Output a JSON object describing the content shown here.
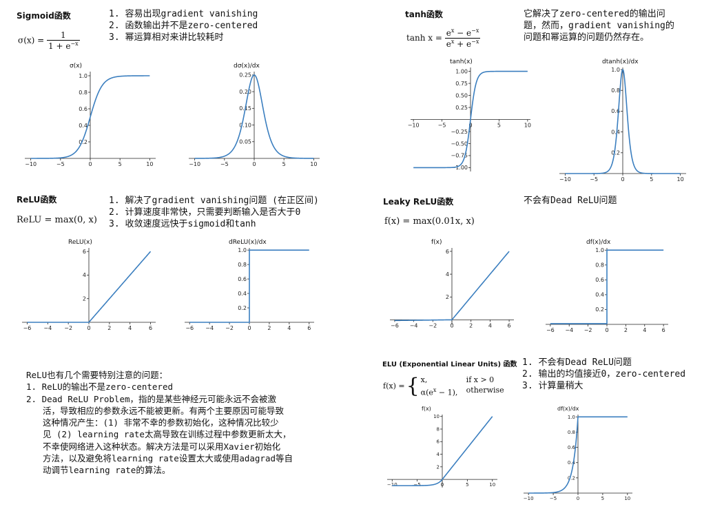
{
  "sections": {
    "sigmoid": {
      "title": "Sigmoid函数",
      "notes": [
        "1.  容易出现gradient vanishing",
        "2.  函数输出并不是zero-centered",
        "3.  幂运算相对来讲比较耗时"
      ],
      "formula": {
        "lhs": "σ(x) =",
        "num": "1",
        "den": "1 + e"
      }
    },
    "tanh": {
      "title": "tanh函数",
      "notes": [
        "它解决了zero-centered的输出问",
        "题，然而，gradient vanishing的",
        "问题和幂运算的问题仍然存在。"
      ],
      "formula": {
        "lhs": "tanh x =",
        "num": "e − e",
        "den": "e + e"
      }
    },
    "relu": {
      "title": "ReLU函数",
      "notes": [
        "1.  解决了gradient vanishing问题 (在正区间)",
        "2.  计算速度非常快，只需要判断输入是否大于0",
        "3.  收敛速度远快于sigmoid和tanh"
      ],
      "formula": "ReLU = max(0, x)"
    },
    "leaky": {
      "title": "Leaky ReLU函数",
      "notes": [
        "不会有Dead ReLU问题"
      ],
      "formula": "f(x) = max(0.01x, x)"
    },
    "elu": {
      "title": "ELU (Exponential Linear Units) 函数",
      "notes": [
        "1.  不会有Dead ReLU问题",
        "2.  输出的均值接近0，zero-centered",
        "3.  计算量稍大"
      ],
      "formula": {
        "lhs": "f(x) =",
        "case1": "x,",
        "cond1": "if x > 0",
        "case2": "α(e − 1),",
        "cond2": "otherwise"
      }
    },
    "relu_issues": {
      "lines": [
        "ReLU也有几个需要特别注意的问题：",
        "1.  ReLU的输出不是zero-centered",
        "2.  Dead ReLU Problem，指的是某些神经元可能永远不会被激",
        "活，导致相应的参数永远不能被更新。有两个主要原因可能导致",
        "这种情况产生：(1) 非常不幸的参数初始化，这种情况比较少",
        "见 (2) learning rate太高导致在训练过程中参数更新太大，",
        "不幸使网络进入这种状态。解决方法是可以采用Xavier初始化",
        "方法，以及避免将learning rate设置太大或使用adagrad等自",
        "动调节learning rate的算法。"
      ]
    }
  },
  "chart_data": [
    {
      "id": "sigmoid",
      "type": "line",
      "title": "σ(x)",
      "function": "sigmoid",
      "xlim": [
        -11,
        11
      ],
      "ylim": [
        0,
        1.05
      ],
      "xticks": [
        -10,
        -5,
        0,
        5,
        10
      ],
      "yticks": [
        0.2,
        0.4,
        0.6,
        0.8,
        1.0
      ],
      "ytick_labels": [
        "0.2",
        "0.4",
        "0.6",
        "0.8",
        "1.0"
      ],
      "color": "#3a7ebf"
    },
    {
      "id": "dsigmoid",
      "type": "line",
      "title": "dσ(x)/dx",
      "function": "dsigmoid",
      "xlim": [
        -11,
        11
      ],
      "ylim": [
        0,
        0.26
      ],
      "xticks": [
        -10,
        -5,
        0,
        5,
        10
      ],
      "yticks": [
        0.05,
        0.1,
        0.15,
        0.2,
        0.25
      ],
      "ytick_labels": [
        "0.05",
        "0.10",
        "0.15",
        "0.20",
        "0.25"
      ],
      "color": "#3a7ebf"
    },
    {
      "id": "tanh",
      "type": "line",
      "title": "tanh(x)",
      "function": "tanh",
      "xlim": [
        -10.5,
        10.5
      ],
      "ylim": [
        -1.08,
        1.08
      ],
      "xticks": [
        -10,
        -5,
        0,
        5,
        10
      ],
      "yticks": [
        -1.0,
        -0.75,
        -0.5,
        -0.25,
        0.25,
        0.5,
        0.75,
        1.0
      ],
      "ytick_labels": [
        "−1.00",
        "−0.75",
        "−0.50",
        "−0.25",
        "0.25",
        "0.50",
        "0.75",
        "1.00"
      ],
      "color": "#3a7ebf"
    },
    {
      "id": "dtanh",
      "type": "line",
      "title": "dtanh(x)/dx",
      "function": "dtanh",
      "xlim": [
        -11,
        11
      ],
      "ylim": [
        0,
        1.02
      ],
      "xticks": [
        -10,
        -5,
        0,
        5,
        10
      ],
      "yticks": [
        0.2,
        0.4,
        0.6,
        0.8,
        1.0
      ],
      "ytick_labels": [
        "0.2",
        "0.4",
        "0.6",
        "0.8",
        "1.0"
      ],
      "color": "#3a7ebf"
    },
    {
      "id": "relu",
      "type": "line",
      "title": "ReLU(x)",
      "function": "relu",
      "xlim": [
        -6.5,
        6.5
      ],
      "ylim": [
        0,
        6.3
      ],
      "xticks": [
        -6,
        -4,
        -2,
        0,
        2,
        4,
        6
      ],
      "yticks": [
        2,
        4,
        6
      ],
      "ytick_labels": [
        "2",
        "4",
        "6"
      ],
      "color": "#3a7ebf"
    },
    {
      "id": "drelu",
      "type": "line",
      "title": "dReLU(x)/dx",
      "function": "drelu",
      "xlim": [
        -6.5,
        6.5
      ],
      "ylim": [
        0,
        1.03
      ],
      "xticks": [
        -6,
        -4,
        -2,
        0,
        2,
        4,
        6
      ],
      "yticks": [
        0.2,
        0.4,
        0.6,
        0.8,
        1.0
      ],
      "ytick_labels": [
        "0.2",
        "0.4",
        "0.6",
        "0.8",
        "1.0"
      ],
      "color": "#3a7ebf"
    },
    {
      "id": "leaky",
      "type": "line",
      "title": "f(x)",
      "function": "leaky",
      "xlim": [
        -6.5,
        6.5
      ],
      "ylim": [
        -0.4,
        6.3
      ],
      "xticks": [
        -6,
        -4,
        -2,
        0,
        2,
        4,
        6
      ],
      "yticks": [
        2,
        4,
        6
      ],
      "ytick_labels": [
        "2",
        "4",
        "6"
      ],
      "color": "#3a7ebf"
    },
    {
      "id": "dleaky",
      "type": "line",
      "title": "df(x)/dx",
      "function": "dleaky",
      "xlim": [
        -6.5,
        6.5
      ],
      "ylim": [
        0,
        1.03
      ],
      "xticks": [
        -6,
        -4,
        -2,
        0,
        2,
        4,
        6
      ],
      "yticks": [
        0.2,
        0.4,
        0.6,
        0.8,
        1.0
      ],
      "ytick_labels": [
        "0.2",
        "0.4",
        "0.6",
        "0.8",
        "1.0"
      ],
      "color": "#3a7ebf"
    },
    {
      "id": "elu",
      "type": "line",
      "title": "f(x)",
      "function": "elu",
      "xlim": [
        -11,
        11
      ],
      "ylim": [
        -1.3,
        10.3
      ],
      "xticks": [
        -10,
        -5,
        0,
        5,
        10
      ],
      "yticks": [
        2,
        4,
        6,
        8,
        10
      ],
      "ytick_labels": [
        "2",
        "4",
        "6",
        "8",
        "10"
      ],
      "color": "#3a7ebf"
    },
    {
      "id": "delu",
      "type": "line",
      "title": "df(x)/dx",
      "function": "delu",
      "xlim": [
        -11,
        11
      ],
      "ylim": [
        0,
        1.03
      ],
      "xticks": [
        -10,
        -5,
        0,
        5,
        10
      ],
      "yticks": [
        0.2,
        0.4,
        0.6,
        0.8,
        1.0
      ],
      "ytick_labels": [
        "0.2",
        "0.4",
        "0.6",
        "0.8",
        "1.0"
      ],
      "color": "#3a7ebf"
    }
  ]
}
